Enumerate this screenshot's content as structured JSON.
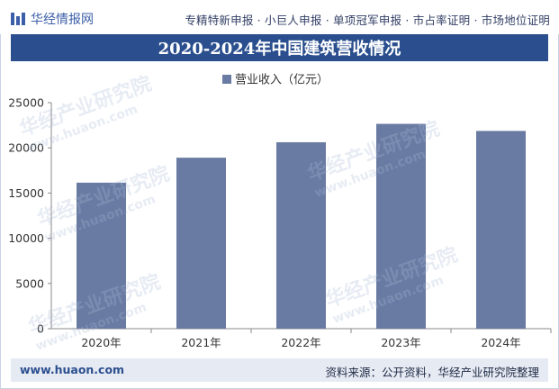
{
  "header": {
    "logo_text": "华经情报网",
    "links": "专精特新申报 · 小巨人申报 · 单项冠军申报 · 市占率证明 · 市场地位证明"
  },
  "title": "2020-2024年中国建筑营收情况",
  "chart_data": {
    "type": "bar",
    "title": "2020-2024年中国建筑营收情况",
    "categories": [
      "2020年",
      "2021年",
      "2022年",
      "2023年",
      "2024年"
    ],
    "series": [
      {
        "name": "营业收入（亿元）",
        "values": [
          16150,
          18913,
          20620,
          22655,
          21871
        ]
      }
    ],
    "ylim": [
      0,
      25000
    ],
    "yticks": [
      0,
      5000,
      10000,
      15000,
      20000,
      25000
    ],
    "legend_position": "top-center",
    "xlabel": "",
    "ylabel": ""
  },
  "colors": {
    "bar": "#6a7ba3",
    "title_band": "#2b4f8e",
    "footer_band": "#e6eaf3"
  },
  "footer": {
    "website": "www.huaon.com",
    "source": "资料来源：公开资料，华经产业研究院整理"
  },
  "watermark": {
    "text": "华经产业研究院",
    "url": "www.huaon.com"
  }
}
